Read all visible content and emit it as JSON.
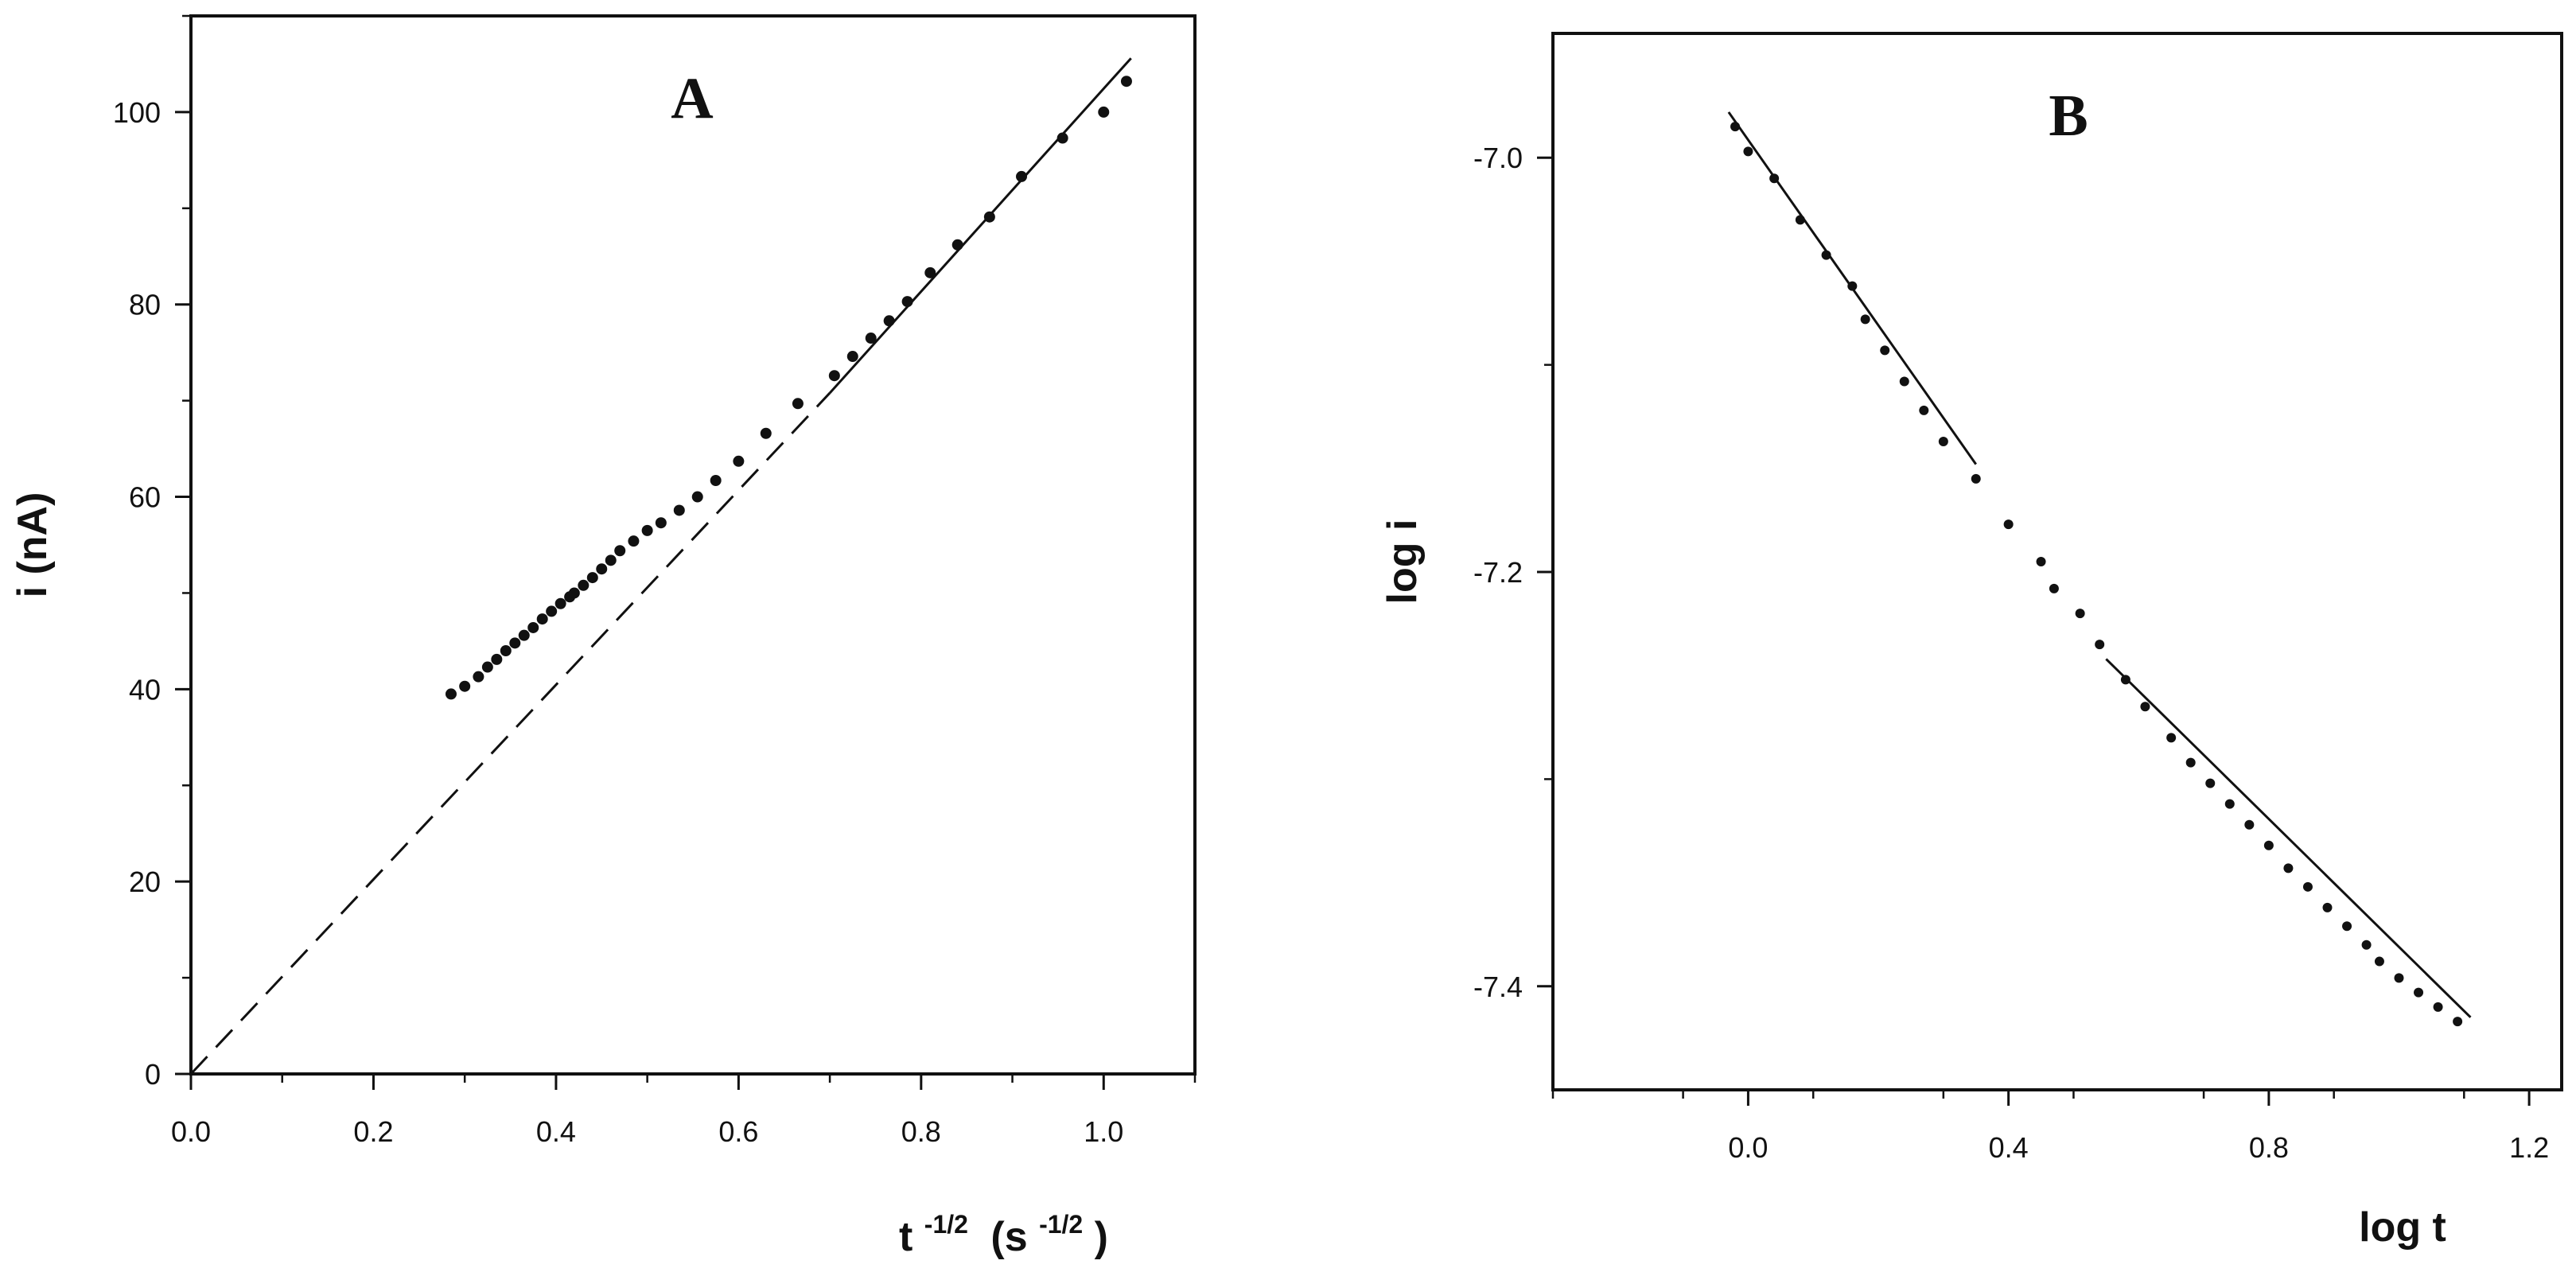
{
  "chart_data": [
    {
      "type": "scatter",
      "panel_label": "A",
      "xlabel": "t",
      "xlabel_sup": "-1/2",
      "xlabel_units": "(s",
      "xlabel_units_sup": "-1/2",
      "xlabel_close": ")",
      "ylabel": "i (nA)",
      "xlim": [
        0.0,
        1.1
      ],
      "ylim": [
        0,
        110
      ],
      "x_ticks": [
        "0.0",
        "0.2",
        "0.4",
        "0.6",
        "0.8",
        "1.0"
      ],
      "y_ticks": [
        "0",
        "20",
        "40",
        "60",
        "80",
        "100"
      ],
      "series": [
        {
          "x": [
            0.285,
            0.3,
            0.315,
            0.325,
            0.335,
            0.345,
            0.355,
            0.365,
            0.375,
            0.385,
            0.395,
            0.405,
            0.415,
            0.42,
            0.43,
            0.44,
            0.45,
            0.46,
            0.47,
            0.485,
            0.5,
            0.515,
            0.535,
            0.555,
            0.575,
            0.6,
            0.63,
            0.665,
            0.705,
            0.725,
            0.745,
            0.765,
            0.785,
            0.81,
            0.84,
            0.875,
            0.91,
            0.955,
            1.0,
            1.025
          ],
          "y": [
            39.5,
            40.3,
            41.3,
            42.3,
            43.1,
            44.0,
            44.8,
            45.6,
            46.4,
            47.3,
            48.1,
            48.9,
            49.6,
            50.0,
            50.8,
            51.6,
            52.5,
            53.4,
            54.4,
            55.4,
            56.5,
            57.3,
            58.6,
            60.0,
            61.7,
            63.7,
            66.6,
            69.7,
            72.6,
            74.6,
            76.5,
            78.3,
            80.3,
            83.3,
            86.2,
            89.1,
            93.3,
            97.3,
            100.0,
            103.2
          ]
        }
      ],
      "fit_line": {
        "x": [
          0.7,
          1.03
        ],
        "y": [
          70.8,
          105.6
        ]
      },
      "extrapolation": {
        "x": [
          0.0,
          0.7
        ],
        "y": [
          0.0,
          70.8
        ]
      }
    },
    {
      "type": "scatter",
      "panel_label": "B",
      "xlabel": "log t",
      "ylabel": "log i",
      "xlim": [
        -0.3,
        1.25
      ],
      "ylim": [
        -7.45,
        -6.94
      ],
      "x_ticks": [
        "0.0",
        "0.4",
        "0.8",
        "1.2"
      ],
      "y_ticks": [
        "-7.0",
        "-7.2",
        "-7.4"
      ],
      "series": [
        {
          "x": [
            -0.02,
            0.0,
            0.04,
            0.08,
            0.12,
            0.16,
            0.18,
            0.21,
            0.24,
            0.27,
            0.3,
            0.35,
            0.4,
            0.45,
            0.47,
            0.51,
            0.54,
            0.58,
            0.61,
            0.65,
            0.68,
            0.71,
            0.74,
            0.77,
            0.8,
            0.83,
            0.86,
            0.89,
            0.92,
            0.95,
            0.97,
            1.0,
            1.03,
            1.06,
            1.09
          ],
          "y": [
            -6.985,
            -6.997,
            -7.01,
            -7.03,
            -7.047,
            -7.062,
            -7.078,
            -7.093,
            -7.108,
            -7.122,
            -7.137,
            -7.155,
            -7.177,
            -7.195,
            -7.208,
            -7.22,
            -7.235,
            -7.252,
            -7.265,
            -7.28,
            -7.292,
            -7.302,
            -7.312,
            -7.322,
            -7.332,
            -7.343,
            -7.352,
            -7.362,
            -7.371,
            -7.38,
            -7.388,
            -7.396,
            -7.403,
            -7.41,
            -7.417
          ]
        }
      ],
      "fit_lines": [
        {
          "x": [
            -0.03,
            0.35
          ],
          "y": [
            -6.978,
            -7.148
          ]
        },
        {
          "x": [
            0.55,
            1.11
          ],
          "y": [
            -7.242,
            -7.415
          ]
        }
      ]
    }
  ]
}
